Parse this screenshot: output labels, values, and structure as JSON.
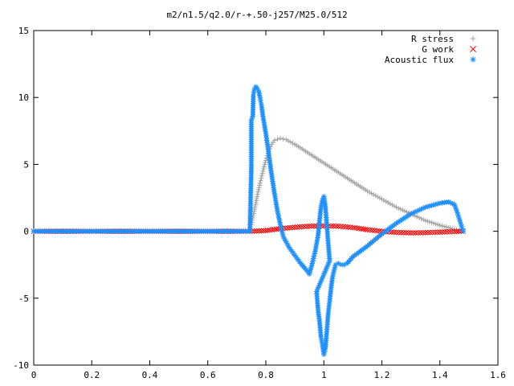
{
  "chart_data": {
    "type": "scatter",
    "title": "m2/n1.5/q2.0/r-+.50-j257/M25.0/512",
    "xlabel": "",
    "ylabel": "",
    "xlim": [
      0,
      1.6
    ],
    "ylim": [
      -10,
      15
    ],
    "x_ticks": [
      "0",
      "0.2",
      "0.4",
      "0.6",
      "0.8",
      "1",
      "1.2",
      "1.4",
      "1.6"
    ],
    "y_ticks": [
      "15",
      "10",
      "5",
      "0",
      "-5",
      "-10"
    ],
    "legend_position": "top-right",
    "grid": false,
    "series": [
      {
        "name": "R stress",
        "marker": "plus",
        "color": "#a0a0a0",
        "points": [
          [
            0,
            0
          ],
          [
            0.1,
            0
          ],
          [
            0.2,
            0
          ],
          [
            0.3,
            0
          ],
          [
            0.4,
            0
          ],
          [
            0.5,
            0
          ],
          [
            0.6,
            0
          ],
          [
            0.7,
            0
          ],
          [
            0.745,
            0
          ],
          [
            0.75,
            0.5
          ],
          [
            0.76,
            1.5
          ],
          [
            0.77,
            2.6
          ],
          [
            0.78,
            3.6
          ],
          [
            0.79,
            4.5
          ],
          [
            0.8,
            5.3
          ],
          [
            0.81,
            6
          ],
          [
            0.82,
            6.5
          ],
          [
            0.83,
            6.8
          ],
          [
            0.85,
            6.95
          ],
          [
            0.87,
            6.85
          ],
          [
            0.9,
            6.5
          ],
          [
            0.95,
            5.8
          ],
          [
            1.0,
            5.1
          ],
          [
            1.05,
            4.4
          ],
          [
            1.1,
            3.7
          ],
          [
            1.15,
            3
          ],
          [
            1.2,
            2.4
          ],
          [
            1.25,
            1.8
          ],
          [
            1.3,
            1.3
          ],
          [
            1.35,
            0.8
          ],
          [
            1.4,
            0.45
          ],
          [
            1.45,
            0.15
          ],
          [
            1.48,
            0
          ]
        ]
      },
      {
        "name": "G work",
        "marker": "cross",
        "color": "#ff0000",
        "points": [
          [
            0,
            0
          ],
          [
            0.2,
            0
          ],
          [
            0.4,
            0
          ],
          [
            0.6,
            0
          ],
          [
            0.745,
            0
          ],
          [
            0.8,
            0.05
          ],
          [
            0.85,
            0.2
          ],
          [
            0.9,
            0.3
          ],
          [
            0.95,
            0.38
          ],
          [
            1.0,
            0.4
          ],
          [
            1.05,
            0.38
          ],
          [
            1.1,
            0.28
          ],
          [
            1.15,
            0.12
          ],
          [
            1.2,
            0
          ],
          [
            1.25,
            -0.08
          ],
          [
            1.3,
            -0.12
          ],
          [
            1.35,
            -0.1
          ],
          [
            1.4,
            -0.06
          ],
          [
            1.45,
            -0.02
          ],
          [
            1.48,
            0
          ]
        ]
      },
      {
        "name": "Acoustic flux",
        "marker": "star",
        "color": "#1e90ff",
        "points": [
          [
            0,
            0
          ],
          [
            0.1,
            0
          ],
          [
            0.2,
            0
          ],
          [
            0.3,
            0
          ],
          [
            0.4,
            0
          ],
          [
            0.5,
            0
          ],
          [
            0.6,
            0
          ],
          [
            0.7,
            0
          ],
          [
            0.745,
            0
          ],
          [
            0.75,
            4.8
          ],
          [
            0.75,
            8.3
          ],
          [
            0.755,
            8.6
          ],
          [
            0.757,
            10.2
          ],
          [
            0.76,
            10.6
          ],
          [
            0.765,
            10.8
          ],
          [
            0.77,
            10.7
          ],
          [
            0.775,
            10.5
          ],
          [
            0.78,
            10
          ],
          [
            0.785,
            9.4
          ],
          [
            0.79,
            8.6
          ],
          [
            0.8,
            7.3
          ],
          [
            0.81,
            5.8
          ],
          [
            0.82,
            4.2
          ],
          [
            0.83,
            2.8
          ],
          [
            0.84,
            1.5
          ],
          [
            0.85,
            0.5
          ],
          [
            0.86,
            -0.4
          ],
          [
            0.88,
            -1.2
          ],
          [
            0.9,
            -1.8
          ],
          [
            0.92,
            -2.4
          ],
          [
            0.94,
            -2.9
          ],
          [
            0.95,
            -3.2
          ],
          [
            0.96,
            -2.4
          ],
          [
            0.97,
            -1.5
          ],
          [
            0.98,
            -0.3
          ],
          [
            0.985,
            0.8
          ],
          [
            0.99,
            1.8
          ],
          [
            0.995,
            2.3
          ],
          [
            1.0,
            2.6
          ],
          [
            1.005,
            1.9
          ],
          [
            1.01,
            0.5
          ],
          [
            1.015,
            -0.9
          ],
          [
            1.02,
            -2.2
          ],
          [
            0.975,
            -4.5
          ],
          [
            0.98,
            -5.9
          ],
          [
            0.985,
            -6.7
          ],
          [
            0.99,
            -7.9
          ],
          [
            0.995,
            -8.5
          ],
          [
            1.0,
            -9.2
          ],
          [
            1.005,
            -8.8
          ],
          [
            1.01,
            -7.5
          ],
          [
            1.015,
            -6.1
          ],
          [
            1.02,
            -5.2
          ],
          [
            1.025,
            -4.2
          ],
          [
            1.03,
            -3.4
          ],
          [
            1.04,
            -2.5
          ],
          [
            1.05,
            -2.4
          ],
          [
            1.06,
            -2.5
          ],
          [
            1.07,
            -2.5
          ],
          [
            1.08,
            -2.4
          ],
          [
            1.1,
            -1.9
          ],
          [
            1.15,
            -1.1
          ],
          [
            1.2,
            -0.2
          ],
          [
            1.25,
            0.6
          ],
          [
            1.3,
            1.3
          ],
          [
            1.35,
            1.8
          ],
          [
            1.4,
            2.1
          ],
          [
            1.43,
            2.2
          ],
          [
            1.45,
            2
          ],
          [
            1.46,
            1.4
          ],
          [
            1.47,
            0.7
          ],
          [
            1.48,
            0
          ]
        ]
      }
    ]
  }
}
